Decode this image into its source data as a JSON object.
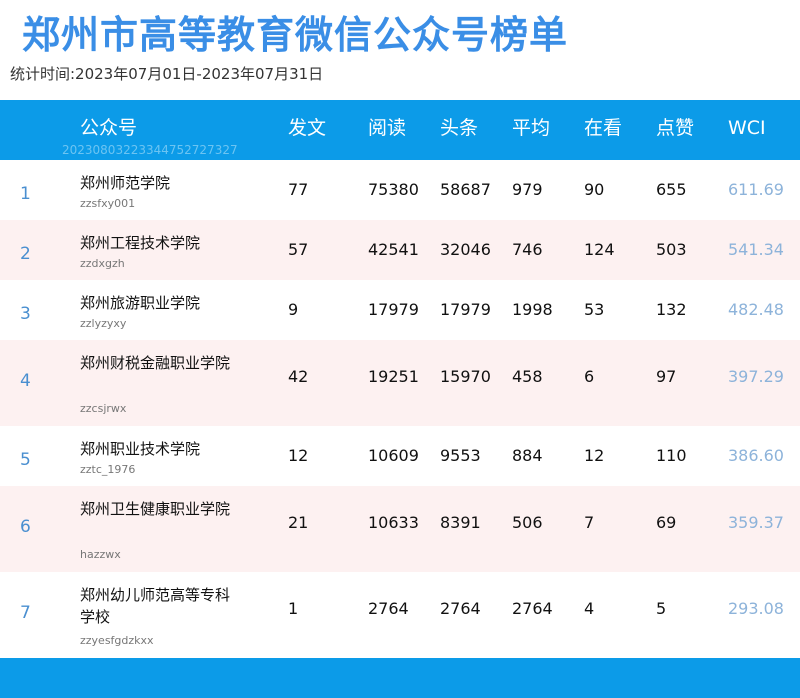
{
  "title": "郑州市高等教育微信公众号榜单",
  "period": "统计时间:2023年07月01日-2023年07月31日",
  "table": {
    "headers": {
      "account": "公众号",
      "posts": "发文",
      "reads": "阅读",
      "headline": "头条",
      "average": "平均",
      "watching": "在看",
      "likes": "点赞",
      "wci": "WCI"
    },
    "stamp": "20230803223344752727327",
    "rows": [
      {
        "rank": "1",
        "name": "郑州师范学院",
        "account_id": "zzsfxy001",
        "posts": "77",
        "reads": "75380",
        "headline": "58687",
        "average": "979",
        "watching": "90",
        "likes": "655",
        "wci": "611.69"
      },
      {
        "rank": "2",
        "name": "郑州工程技术学院",
        "account_id": "zzdxgzh",
        "posts": "57",
        "reads": "42541",
        "headline": "32046",
        "average": "746",
        "watching": "124",
        "likes": "503",
        "wci": "541.34"
      },
      {
        "rank": "3",
        "name": "郑州旅游职业学院",
        "account_id": "zzlyzyxy",
        "posts": "9",
        "reads": "17979",
        "headline": "17979",
        "average": "1998",
        "watching": "53",
        "likes": "132",
        "wci": "482.48"
      },
      {
        "rank": "4",
        "name": "郑州财税金融职业学院",
        "account_id": "zzcsjrwx",
        "posts": "42",
        "reads": "19251",
        "headline": "15970",
        "average": "458",
        "watching": "6",
        "likes": "97",
        "wci": "397.29"
      },
      {
        "rank": "5",
        "name": "郑州职业技术学院",
        "account_id": "zztc_1976",
        "posts": "12",
        "reads": "10609",
        "headline": "9553",
        "average": "884",
        "watching": "12",
        "likes": "110",
        "wci": "386.60"
      },
      {
        "rank": "6",
        "name": "郑州卫生健康职业学院",
        "account_id": "hazzwx",
        "posts": "21",
        "reads": "10633",
        "headline": "8391",
        "average": "506",
        "watching": "7",
        "likes": "69",
        "wci": "359.37"
      },
      {
        "rank": "7",
        "name": "郑州幼儿师范高等专科学校",
        "account_id": "zzyesfgdzkxx",
        "posts": "1",
        "reads": "2764",
        "headline": "2764",
        "average": "2764",
        "watching": "4",
        "likes": "5",
        "wci": "293.08"
      }
    ]
  },
  "colors": {
    "title": "#3a8ee6",
    "header_bg": "#0c9be8",
    "row_alt_bg": "#fdf1f1",
    "rank": "#4a8fd0",
    "wci": "#8db3da"
  }
}
